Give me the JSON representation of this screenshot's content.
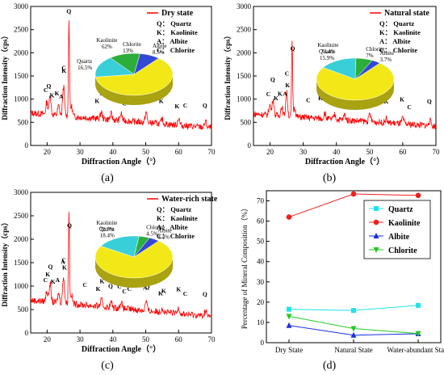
{
  "figure": {
    "panel_labels": [
      "(a)",
      "(b)",
      "(c)",
      "(d)"
    ]
  },
  "chart_data": [
    {
      "type": "line",
      "panel": "(a)",
      "title": "",
      "xlabel": "Diffraction Angle（°）",
      "ylabel": "Diffraction Intensity（cps）",
      "xlim": [
        15,
        70
      ],
      "ylim": [
        0,
        3000
      ],
      "x_ticks": [
        20,
        30,
        40,
        50,
        60,
        70
      ],
      "y_ticks": [
        0,
        500,
        1000,
        1500,
        2000,
        2500,
        3000
      ],
      "series": [
        {
          "name": "Dry state",
          "color": "#ff0000",
          "baseline": 700,
          "end_value": 380,
          "peaks": [
            [
              19.9,
              260
            ],
            [
              20.9,
              430
            ],
            [
              23.5,
              200
            ],
            [
              25.0,
              640
            ],
            [
              26.65,
              2080
            ],
            [
              27.4,
              220
            ],
            [
              36.5,
              150
            ],
            [
              39.5,
              120
            ],
            [
              42.5,
              150
            ],
            [
              50.1,
              220
            ],
            [
              55.0,
              100
            ],
            [
              60.0,
              160
            ],
            [
              68.2,
              130
            ]
          ]
        }
      ],
      "peak_labels": [
        {
          "x": 19.6,
          "text": "C"
        },
        {
          "x": 20.5,
          "text": "Q"
        },
        {
          "x": 21.5,
          "text": "K"
        },
        {
          "x": 23.0,
          "text": "K"
        },
        {
          "x": 24.3,
          "text": "A"
        },
        {
          "x": 25.1,
          "text": "C"
        },
        {
          "x": 25.1,
          "text": "K"
        },
        {
          "x": 26.6,
          "text": "Q"
        },
        {
          "x": 35.2,
          "text": "K"
        },
        {
          "x": 36.7,
          "text": "K"
        },
        {
          "x": 39.3,
          "text": "Q"
        },
        {
          "x": 42.0,
          "text": "C"
        },
        {
          "x": 43.5,
          "text": "C"
        },
        {
          "x": 45.5,
          "text": "C"
        },
        {
          "x": 50.0,
          "text": "Q"
        },
        {
          "x": 54.7,
          "text": "K"
        },
        {
          "x": 59.5,
          "text": "K"
        },
        {
          "x": 62.0,
          "text": "C"
        },
        {
          "x": 68.0,
          "text": "Q"
        }
      ],
      "legend_codes": [
        "Q： Quartz",
        "K： Kaolinite",
        "A： Albite",
        "C： Chlorite"
      ],
      "pie": {
        "slices": [
          {
            "label": "Kaolinite",
            "value": 62,
            "display": "62%",
            "color": "#f2e818"
          },
          {
            "label": "Quartz",
            "value": 16.5,
            "display": "16.5%",
            "color": "#39cfd8"
          },
          {
            "label": "Chlorite",
            "value": 13,
            "display": "13%",
            "color": "#2dae3b"
          },
          {
            "label": "Albite",
            "value": 8.5,
            "display": "8.5%",
            "color": "#3448d6"
          }
        ]
      }
    },
    {
      "type": "line",
      "panel": "(b)",
      "title": "",
      "xlabel": "Diffraction Angle（°）",
      "ylabel": "Diffraction Intensity（cps）",
      "xlim": [
        15,
        70
      ],
      "ylim": [
        0,
        3000
      ],
      "x_ticks": [
        20,
        30,
        40,
        50,
        60,
        70
      ],
      "y_ticks": [
        0,
        500,
        1000,
        1500,
        2000,
        2500,
        3000
      ],
      "series": [
        {
          "name": "Natural state",
          "color": "#ff0000",
          "baseline": 680,
          "end_value": 420,
          "peaks": [
            [
              19.9,
              220
            ],
            [
              20.9,
              360
            ],
            [
              23.5,
              200
            ],
            [
              25.0,
              520
            ],
            [
              26.65,
              1580
            ],
            [
              27.4,
              200
            ],
            [
              36.5,
              120
            ],
            [
              39.5,
              100
            ],
            [
              42.5,
              120
            ],
            [
              50.1,
              160
            ],
            [
              55.0,
              90
            ],
            [
              60.0,
              120
            ],
            [
              68.2,
              110
            ]
          ]
        }
      ],
      "peak_labels": [
        {
          "x": 19.5,
          "text": "C"
        },
        {
          "x": 20.8,
          "text": "Q"
        },
        {
          "x": 21.8,
          "text": "K"
        },
        {
          "x": 23.0,
          "text": "K"
        },
        {
          "x": 24.5,
          "text": "A"
        },
        {
          "x": 25.1,
          "text": "C"
        },
        {
          "x": 25.3,
          "text": "K"
        },
        {
          "x": 26.8,
          "text": "Q"
        },
        {
          "x": 31.5,
          "text": "C"
        },
        {
          "x": 35.2,
          "text": "K"
        },
        {
          "x": 36.6,
          "text": "K"
        },
        {
          "x": 39.2,
          "text": "Q"
        },
        {
          "x": 42.0,
          "text": "C"
        },
        {
          "x": 43.5,
          "text": "C"
        },
        {
          "x": 45.0,
          "text": "C"
        },
        {
          "x": 50.0,
          "text": "Q"
        },
        {
          "x": 55.0,
          "text": "K"
        },
        {
          "x": 59.8,
          "text": "K"
        },
        {
          "x": 62.0,
          "text": "C"
        },
        {
          "x": 68.0,
          "text": "Q"
        }
      ],
      "legend_codes": [
        "Q： Quartz",
        "K： Kaolinite",
        "A： Albite",
        "C： Chlorite"
      ],
      "pie": {
        "slices": [
          {
            "label": "Kaolinite",
            "value": 73.4,
            "display": "73.4%",
            "color": "#f2e818"
          },
          {
            "label": "Quartz",
            "value": 15.9,
            "display": "15.9%",
            "color": "#39cfd8"
          },
          {
            "label": "Chlorite",
            "value": 7,
            "display": "7%",
            "color": "#2dae3b"
          },
          {
            "label": "Albite",
            "value": 3.7,
            "display": "3.7%",
            "color": "#3448d6"
          }
        ]
      }
    },
    {
      "type": "line",
      "panel": "(c)",
      "title": "",
      "xlabel": "Diffraction Angle（°）",
      "ylabel": "Diffraction Intensity（cps）",
      "xlim": [
        15,
        70
      ],
      "ylim": [
        0,
        3000
      ],
      "x_ticks": [
        20,
        30,
        40,
        50,
        60,
        70
      ],
      "y_ticks": [
        0,
        500,
        1000,
        1500,
        2000,
        2500,
        3000
      ],
      "series": [
        {
          "name": "Water-rich state",
          "color": "#ff0000",
          "baseline": 700,
          "end_value": 350,
          "peaks": [
            [
              19.9,
              240
            ],
            [
              20.9,
              400
            ],
            [
              23.5,
              200
            ],
            [
              25.0,
              580
            ],
            [
              26.65,
              1980
            ],
            [
              27.4,
              200
            ],
            [
              36.5,
              140
            ],
            [
              39.5,
              110
            ],
            [
              42.5,
              140
            ],
            [
              50.1,
              200
            ],
            [
              55.0,
              100
            ],
            [
              60.0,
              140
            ],
            [
              68.2,
              120
            ]
          ]
        }
      ],
      "peak_labels": [
        {
          "x": 19.5,
          "text": "C"
        },
        {
          "x": 20.2,
          "text": "K"
        },
        {
          "x": 21.0,
          "text": "Q"
        },
        {
          "x": 21.8,
          "text": "K"
        },
        {
          "x": 23.2,
          "text": "A"
        },
        {
          "x": 24.8,
          "text": "A"
        },
        {
          "x": 25.1,
          "text": "C"
        },
        {
          "x": 25.3,
          "text": "K"
        },
        {
          "x": 26.8,
          "text": "Q"
        },
        {
          "x": 31.5,
          "text": "C"
        },
        {
          "x": 35.5,
          "text": "K"
        },
        {
          "x": 36.7,
          "text": "K"
        },
        {
          "x": 39.3,
          "text": "Q"
        },
        {
          "x": 42.0,
          "text": "C"
        },
        {
          "x": 43.5,
          "text": "C"
        },
        {
          "x": 45.0,
          "text": "C"
        },
        {
          "x": 49.8,
          "text": "A"
        },
        {
          "x": 50.5,
          "text": "Q"
        },
        {
          "x": 54.5,
          "text": "K"
        },
        {
          "x": 55.5,
          "text": "K"
        },
        {
          "x": 60.0,
          "text": "K"
        },
        {
          "x": 62.0,
          "text": "C"
        },
        {
          "x": 68.0,
          "text": "Q"
        }
      ],
      "legend_codes": [
        "Q： Quartz",
        "K： Kaolinite",
        "A： Albite",
        "C： Chlorite"
      ],
      "pie": {
        "slices": [
          {
            "label": "Kaolinite",
            "value": 72.7,
            "display": "72.7%",
            "color": "#f2e818"
          },
          {
            "label": "Quartz",
            "value": 18.4,
            "display": "18.4%",
            "color": "#39cfd8"
          },
          {
            "label": "Chlorite",
            "value": 4.5,
            "display": "4.5%",
            "color": "#2dae3b"
          },
          {
            "label": "Albite",
            "value": 4.4,
            "display": "4.4%",
            "color": "#3448d6"
          }
        ]
      }
    },
    {
      "type": "line",
      "panel": "(d)",
      "title": "",
      "xlabel": "",
      "ylabel": "Percentage of Mineral Composition（%）",
      "categories": [
        "Dry State",
        "Natural State",
        "Water-abundant State"
      ],
      "ylim": [
        0,
        75
      ],
      "y_ticks": [
        0,
        10,
        20,
        30,
        40,
        50,
        60,
        70
      ],
      "legend_position": "right",
      "series": [
        {
          "name": "Quartz",
          "color": "#1fe3e8",
          "marker": "square",
          "values": [
            16.5,
            15.9,
            18.4
          ]
        },
        {
          "name": "Kaolinite",
          "color": "#ef2020",
          "marker": "circle",
          "values": [
            62,
            73.4,
            72.7
          ]
        },
        {
          "name": "Albite",
          "color": "#1a2ee0",
          "marker": "triangle-up",
          "values": [
            8.5,
            3.7,
            4.4
          ]
        },
        {
          "name": "Chlorite",
          "color": "#22c922",
          "marker": "triangle-down",
          "values": [
            13,
            7,
            4.5
          ]
        }
      ]
    }
  ]
}
